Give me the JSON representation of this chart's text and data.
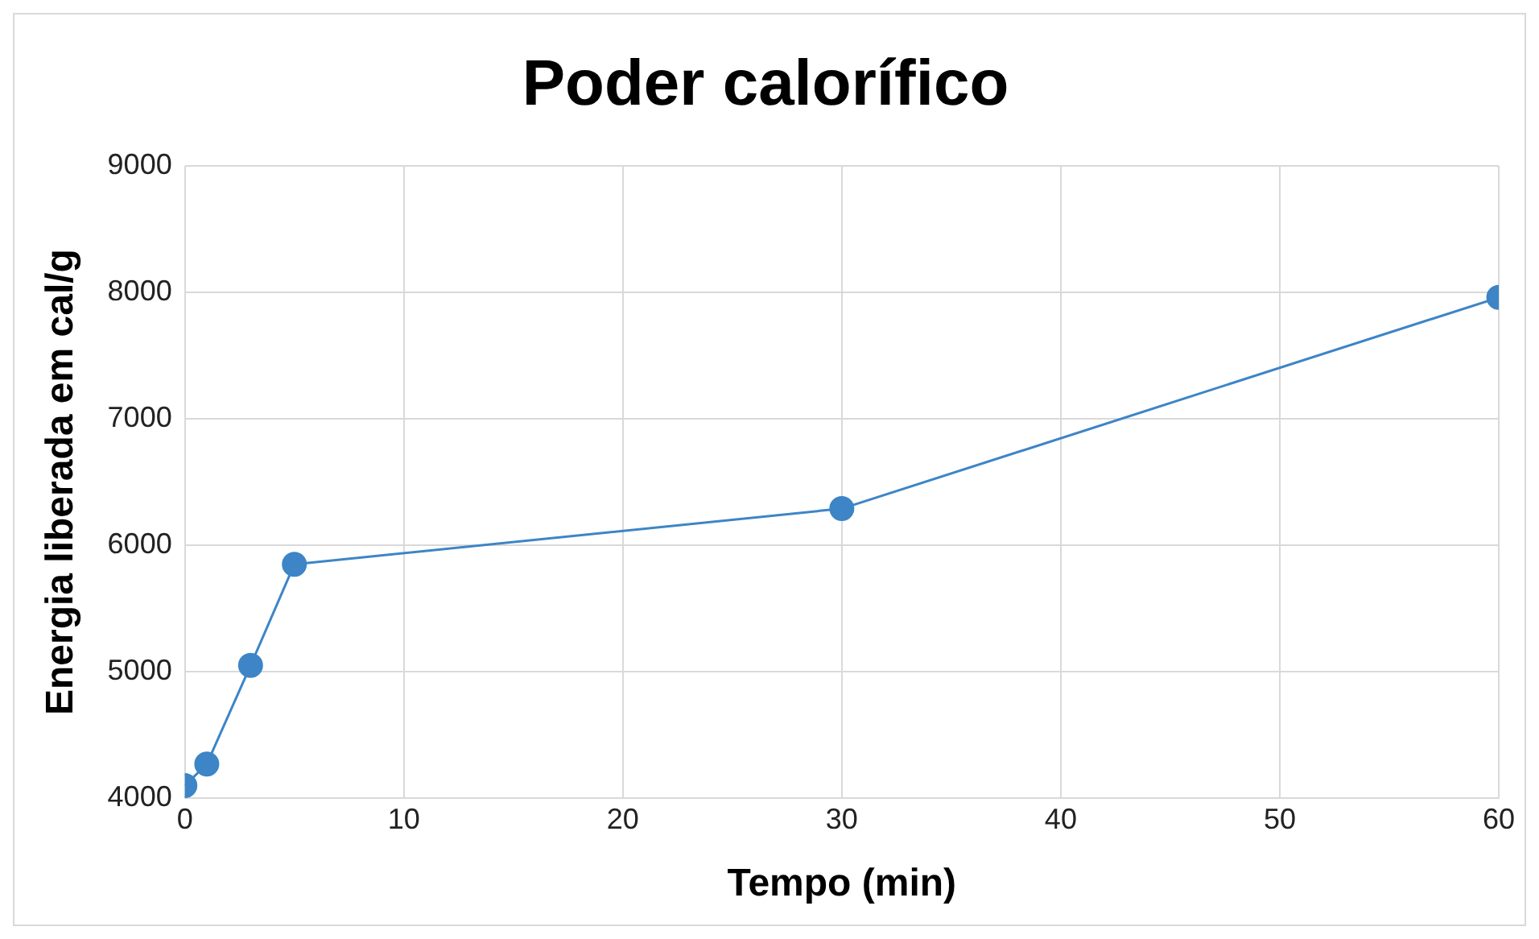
{
  "chart_data": {
    "type": "line",
    "title": "Poder calorífico",
    "xlabel": "Tempo (min)",
    "ylabel": "Energia liberada em cal/g",
    "x": [
      0,
      1,
      3,
      5,
      30,
      60
    ],
    "series": [
      {
        "color": "#3d85c6",
        "values": [
          4100,
          4270,
          5050,
          5850,
          6290,
          7960
        ]
      }
    ],
    "xlim": [
      0,
      60
    ],
    "xticks": [
      0,
      10,
      20,
      30,
      40,
      50,
      60
    ],
    "ylim": [
      4000,
      9000
    ],
    "yticks": [
      4000,
      5000,
      6000,
      7000,
      8000,
      9000
    ],
    "grid": true,
    "marker": "circle",
    "line_style": "solid",
    "legend": false
  }
}
